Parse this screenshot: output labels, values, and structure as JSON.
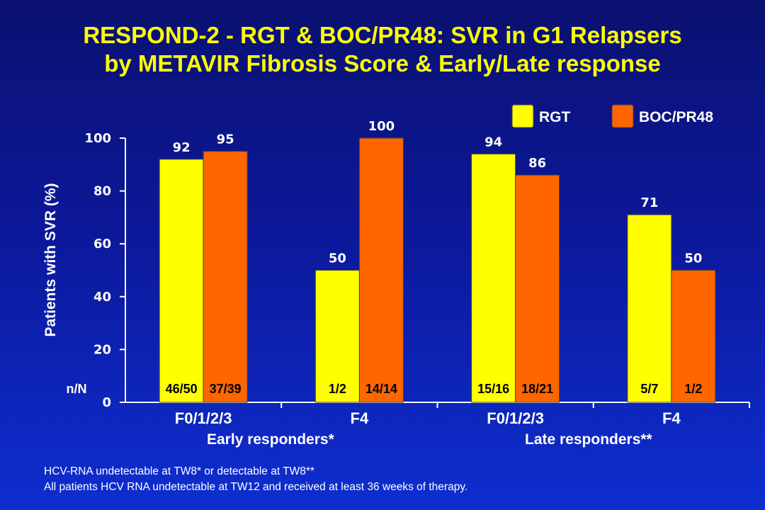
{
  "title": {
    "line1": "RESPOND-2 - RGT & BOC/PR48: SVR in G1 Relapsers",
    "line2": "by METAVIR Fibrosis Score & Early/Late response"
  },
  "colors": {
    "rgt": "#ffff00",
    "boc": "#ff6600",
    "title": "#ffff00",
    "axis": "#ffffff"
  },
  "groups": {
    "early": "Early responders*",
    "late": "Late responders**"
  },
  "nN_label": "n/N",
  "footnotes": {
    "line1": "HCV-RNA undetectable at TW8* or detectable at TW8**",
    "line2": "All patients HCV RNA undetectable at TW12 and received at least 36 weeks of therapy."
  },
  "chart_data": {
    "type": "bar",
    "title": "RESPOND-2 - RGT & BOC/PR48: SVR in G1 Relapsers by METAVIR Fibrosis Score & Early/Late response",
    "ylabel": "Patients with SVR (%)",
    "ylim": [
      0,
      100
    ],
    "yticks": [
      0,
      20,
      40,
      60,
      80,
      100
    ],
    "categories": [
      "F0/1/2/3",
      "F4",
      "F0/1/2/3",
      "F4"
    ],
    "category_groups": [
      "Early responders*",
      "Early responders*",
      "Late responders**",
      "Late responders**"
    ],
    "legend_position": "top-right",
    "series": [
      {
        "name": "RGT",
        "values": [
          92,
          50,
          94,
          71
        ],
        "nN": [
          "46/50",
          "1/2",
          "15/16",
          "5/7"
        ]
      },
      {
        "name": "BOC/PR48",
        "values": [
          95,
          100,
          86,
          50
        ],
        "nN": [
          "37/39",
          "14/14",
          "18/21",
          "1/2"
        ]
      }
    ]
  }
}
